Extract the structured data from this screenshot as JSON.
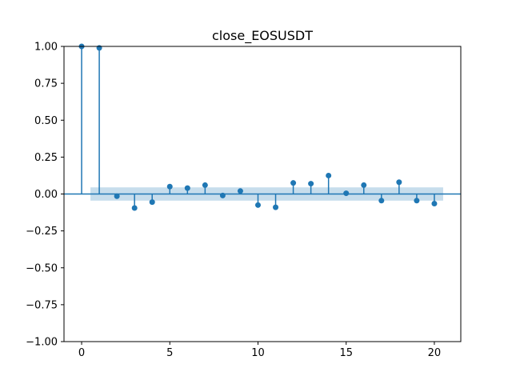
{
  "chart_data": {
    "type": "stem",
    "title": "close_EOSUSDT",
    "xlabel": "",
    "ylabel": "",
    "xlim": [
      -1,
      21.5
    ],
    "ylim": [
      -1.0,
      1.0
    ],
    "xticks": [
      0,
      5,
      10,
      15,
      20
    ],
    "yticks": [
      -1.0,
      -0.75,
      -0.5,
      -0.25,
      0.0,
      0.25,
      0.5,
      0.75,
      1.0
    ],
    "xtick_labels": [
      "0",
      "5",
      "10",
      "15",
      "20"
    ],
    "ytick_labels": [
      "−1.00",
      "−0.75",
      "−0.50",
      "−0.25",
      "0.00",
      "0.25",
      "0.50",
      "0.75",
      "1.00"
    ],
    "confidence_band": {
      "x_range": [
        0.5,
        20.5
      ],
      "lower": -0.045,
      "upper": 0.045
    },
    "series": [
      {
        "x": [
          0,
          1,
          2,
          3,
          4,
          5,
          6,
          7,
          8,
          9,
          10,
          11,
          12,
          13,
          14,
          15,
          16,
          17,
          18,
          19,
          20
        ],
        "values": [
          1.0,
          0.99,
          -0.015,
          -0.095,
          -0.055,
          0.05,
          0.04,
          0.06,
          -0.01,
          0.02,
          -0.075,
          -0.09,
          0.075,
          0.07,
          0.125,
          0.005,
          0.06,
          -0.045,
          0.08,
          -0.045,
          -0.065
        ]
      }
    ],
    "colors": {
      "stem": "#1f77b4",
      "band": "#1f77b4"
    },
    "grid": false
  }
}
